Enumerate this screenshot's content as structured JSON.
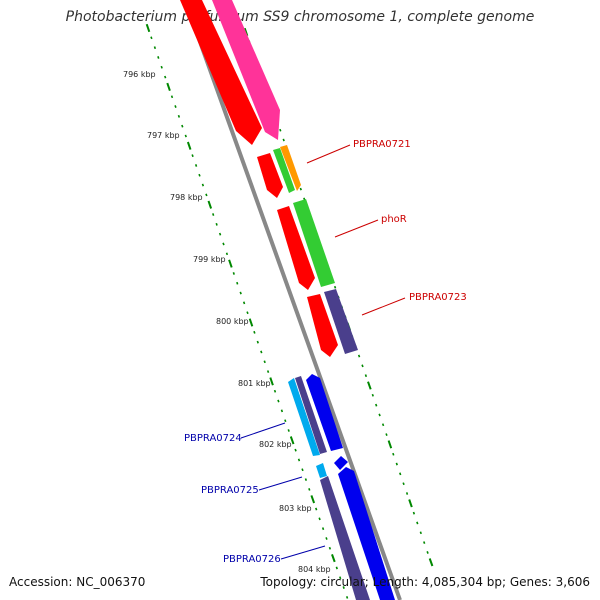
{
  "title": "Photobacterium profundum SS9 chromosome 1, complete genome",
  "footer": {
    "accession": "Accession: NC_006370",
    "topology": "Topology: circular; Length: 4,085,304 bp; Genes: 3,606"
  },
  "scale": {
    "ticks": [
      {
        "label": "796 kbp"
      },
      {
        "label": "797 kbp"
      },
      {
        "label": "798 kbp"
      },
      {
        "label": "799 kbp"
      },
      {
        "label": "800 kbp"
      },
      {
        "label": "801 kbp"
      },
      {
        "label": "802 kbp"
      },
      {
        "label": "803 kbp"
      },
      {
        "label": "804 kbp"
      }
    ]
  },
  "gene_labels": [
    {
      "text": "PBPRA0721",
      "color": "#cc0000"
    },
    {
      "text": "phoR",
      "color": "#cc0000"
    },
    {
      "text": "PBPRA0723",
      "color": "#cc0000"
    },
    {
      "text": "PBPRA0724",
      "color": "#0000aa"
    },
    {
      "text": "PBPRA0725",
      "color": "#0000aa"
    },
    {
      "text": "PBPRA0726",
      "color": "#0000aa"
    }
  ],
  "colors": {
    "red": "#ff0000",
    "pink": "#ff3399",
    "green": "#33cc33",
    "orange": "#ff9900",
    "purple": "#4a3f8c",
    "blue": "#0000ee",
    "cyan": "#00aaee",
    "backbone": "#888888",
    "dots": "#008800"
  }
}
